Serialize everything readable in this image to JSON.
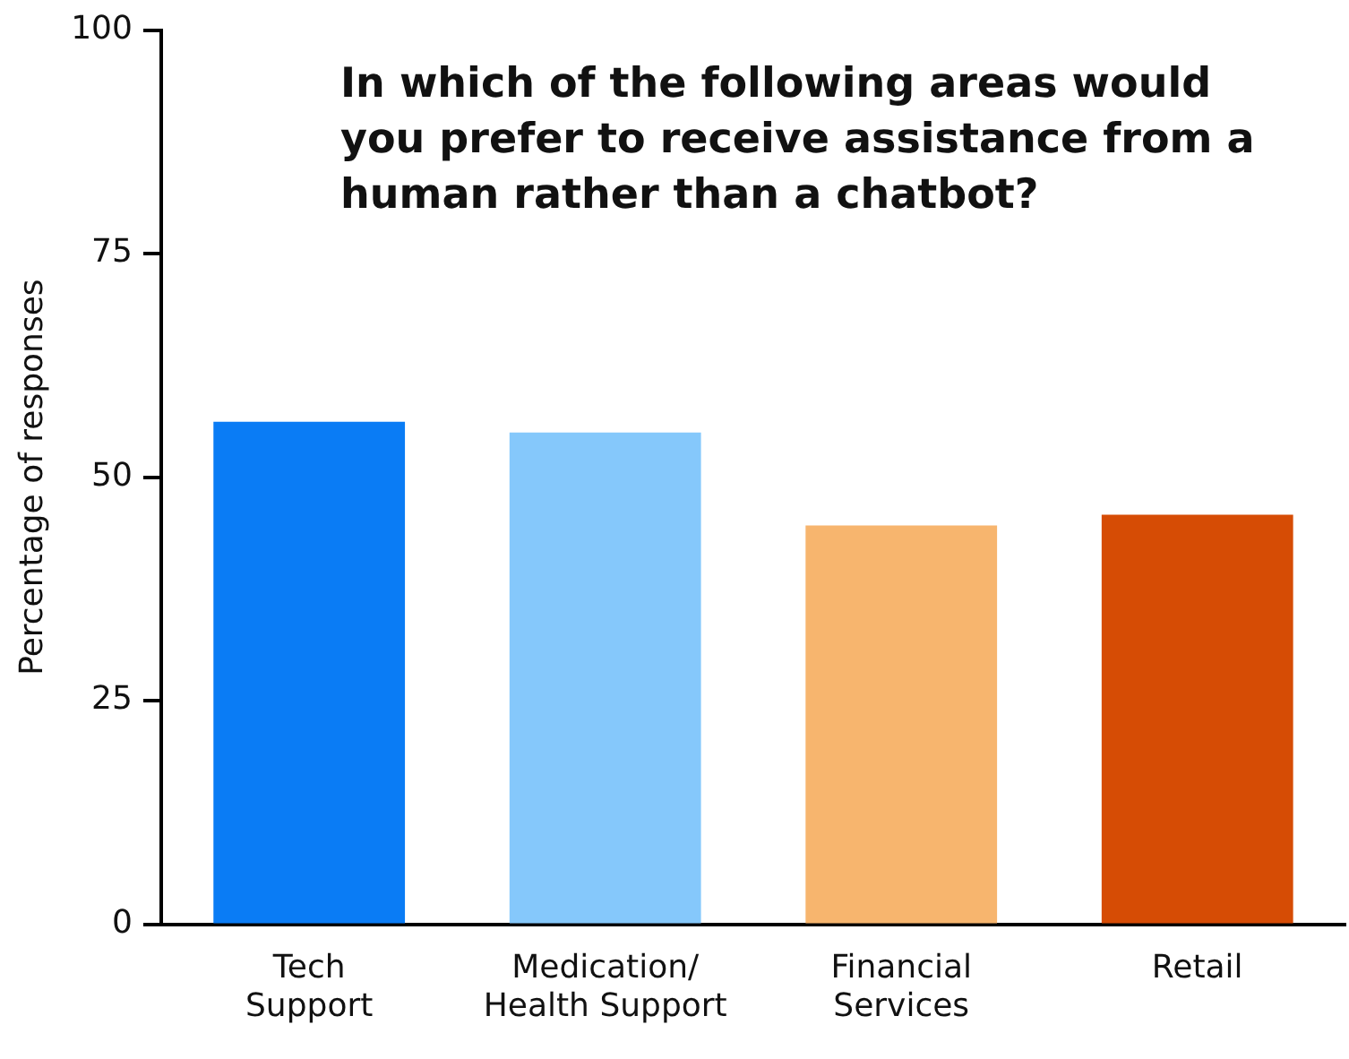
{
  "chart_data": {
    "type": "bar",
    "title": "In which of the following areas would you prefer to receive assistance from a human rather than a chatbot?",
    "ylabel": "Percentage of responses",
    "categories": [
      "Tech Support",
      "Medication/ Health Support",
      "Financial Services",
      "Retail"
    ],
    "values": [
      56.2,
      55,
      44.6,
      45.8
    ],
    "colors": [
      "#0a7cf5",
      "#85c8fb",
      "#f7b56e",
      "#d64c05"
    ],
    "ylim": [
      0,
      100
    ],
    "yticks": [
      0,
      25,
      50,
      75,
      100
    ],
    "grid": false,
    "legend": false
  }
}
